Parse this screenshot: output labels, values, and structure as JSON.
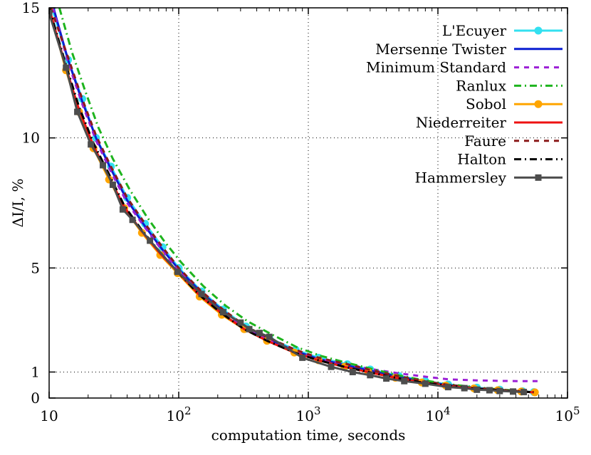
{
  "chart_data": {
    "type": "line",
    "xlabel": "computation time, seconds",
    "ylabel": "ΔI/I, %",
    "xscale": "log",
    "xlim": [
      10,
      100000
    ],
    "ylim": [
      0,
      15
    ],
    "x_ticks": [
      {
        "value": 10,
        "base": "10",
        "exp": ""
      },
      {
        "value": 100,
        "base": "10",
        "exp": "2"
      },
      {
        "value": 1000,
        "base": "10",
        "exp": "3"
      },
      {
        "value": 10000,
        "base": "10",
        "exp": "4"
      },
      {
        "value": 100000,
        "base": "10",
        "exp": "5"
      }
    ],
    "y_ticks": [
      {
        "value": 0,
        "label": "0"
      },
      {
        "value": 1,
        "label": "1"
      },
      {
        "value": 5,
        "label": "5"
      },
      {
        "value": 10,
        "label": "10"
      },
      {
        "value": 15,
        "label": "15"
      }
    ],
    "grid": true,
    "legend_position": "top-right",
    "series": [
      {
        "name": "L'Ecuyer",
        "color": "#33e0f0",
        "dash": "solid",
        "marker": "circle",
        "x": [
          10.5,
          14,
          18,
          23,
          30,
          40,
          55,
          75,
          100,
          150,
          220,
          330,
          500,
          800,
          1200,
          2000,
          3000,
          5000,
          8000,
          12000,
          20000,
          30000,
          45000,
          55000
        ],
        "y": [
          15,
          13.0,
          11.5,
          10.0,
          8.9,
          7.7,
          6.7,
          5.8,
          5.0,
          4.1,
          3.4,
          2.75,
          2.3,
          1.85,
          1.55,
          1.3,
          1.1,
          0.85,
          0.65,
          0.52,
          0.4,
          0.32,
          0.26,
          0.23
        ]
      },
      {
        "name": "Mersenne Twister",
        "color": "#0a1ed2",
        "dash": "solid",
        "marker": "none",
        "x": [
          10.8,
          14,
          18,
          23,
          30,
          40,
          55,
          75,
          100,
          150,
          220,
          330,
          500,
          800,
          1200,
          2000,
          3000,
          5000,
          8000,
          12000,
          20000,
          30000,
          45000,
          55000
        ],
        "y": [
          15,
          13.0,
          11.4,
          10.0,
          8.8,
          7.6,
          6.6,
          5.7,
          4.95,
          4.05,
          3.35,
          2.7,
          2.25,
          1.8,
          1.5,
          1.25,
          1.05,
          0.82,
          0.62,
          0.5,
          0.38,
          0.3,
          0.25,
          0.22
        ]
      },
      {
        "name": "Minimum Standard",
        "color": "#9b1fd6",
        "dash": "7 7",
        "marker": "none",
        "x": [
          10.7,
          14,
          18,
          23,
          30,
          40,
          55,
          75,
          100,
          150,
          220,
          330,
          500,
          800,
          1200,
          2000,
          3000,
          5000,
          8000,
          12000,
          20000,
          30000,
          45000,
          60000
        ],
        "y": [
          15,
          12.9,
          11.3,
          9.9,
          8.7,
          7.5,
          6.55,
          5.65,
          4.9,
          4.0,
          3.3,
          2.7,
          2.25,
          1.8,
          1.5,
          1.3,
          1.12,
          0.95,
          0.82,
          0.72,
          0.68,
          0.66,
          0.65,
          0.65
        ]
      },
      {
        "name": "Ranlux",
        "color": "#1eb41e",
        "dash": "10 5 2 5",
        "marker": "none",
        "x": [
          12,
          15,
          19,
          24,
          31,
          42,
          57,
          78,
          105,
          155,
          230,
          340,
          520,
          820,
          1250,
          2000,
          3100,
          5000,
          8000,
          12000,
          20000,
          30000,
          45000,
          55000
        ],
        "y": [
          15,
          13.3,
          11.8,
          10.4,
          9.2,
          8.0,
          6.95,
          6.0,
          5.2,
          4.3,
          3.55,
          2.95,
          2.45,
          1.95,
          1.62,
          1.35,
          1.12,
          0.87,
          0.67,
          0.53,
          0.41,
          0.33,
          0.26,
          0.23
        ]
      },
      {
        "name": "Sobol",
        "color": "#ffa500",
        "dash": "solid",
        "marker": "circle",
        "x": [
          10,
          13.5,
          17,
          22,
          29,
          38,
          52,
          72,
          98,
          145,
          215,
          320,
          480,
          780,
          1200,
          1900,
          2900,
          4700,
          7500,
          11500,
          19000,
          29000,
          44000,
          56000
        ],
        "y": [
          15,
          12.6,
          11.0,
          9.6,
          8.4,
          7.3,
          6.35,
          5.5,
          4.8,
          3.9,
          3.2,
          2.65,
          2.2,
          1.75,
          1.45,
          1.2,
          1.0,
          0.78,
          0.6,
          0.48,
          0.37,
          0.3,
          0.25,
          0.22
        ]
      },
      {
        "name": "Niederreiter",
        "color": "#ee1111",
        "dash": "solid",
        "marker": "none",
        "x": [
          10,
          13.5,
          17,
          22,
          29,
          38,
          52,
          72,
          98,
          145,
          215,
          320,
          480,
          780,
          1200,
          1900,
          2900,
          4700,
          7500,
          11500,
          19000,
          29000,
          44000,
          55000
        ],
        "y": [
          15,
          12.7,
          11.1,
          9.7,
          8.5,
          7.35,
          6.4,
          5.55,
          4.85,
          3.95,
          3.25,
          2.65,
          2.2,
          1.75,
          1.45,
          1.2,
          1.0,
          0.78,
          0.6,
          0.48,
          0.37,
          0.3,
          0.25,
          0.22
        ]
      },
      {
        "name": "Faure",
        "color": "#8b1a1a",
        "dash": "7 7",
        "marker": "none",
        "x": [
          10.3,
          14,
          18,
          23,
          30,
          40,
          55,
          75,
          100,
          150,
          220,
          330,
          500,
          800,
          1200,
          2000,
          3000,
          5000,
          8000,
          12000,
          20000,
          30000,
          45000,
          55000
        ],
        "y": [
          15,
          13.1,
          11.5,
          10.1,
          8.9,
          7.7,
          6.7,
          5.8,
          5.0,
          4.1,
          3.4,
          2.75,
          2.3,
          1.85,
          1.55,
          1.3,
          1.08,
          0.84,
          0.64,
          0.51,
          0.39,
          0.31,
          0.26,
          0.23
        ]
      },
      {
        "name": "Halton",
        "color": "#000000",
        "dash": "10 5 2 5",
        "marker": "none",
        "x": [
          10,
          13.5,
          17,
          22,
          29,
          38,
          52,
          72,
          98,
          145,
          215,
          320,
          480,
          780,
          1200,
          1900,
          2900,
          4700,
          7500,
          11500,
          19000,
          29000,
          44000,
          55000
        ],
        "y": [
          15,
          12.8,
          11.2,
          9.8,
          8.6,
          7.4,
          6.45,
          5.6,
          4.85,
          3.95,
          3.25,
          2.65,
          2.2,
          1.75,
          1.45,
          1.2,
          1.0,
          0.78,
          0.6,
          0.48,
          0.37,
          0.3,
          0.25,
          0.22
        ]
      },
      {
        "name": "Hammersley",
        "color": "#4d4d4d",
        "dash": "solid",
        "marker": "square",
        "x": [
          10,
          13.5,
          16.5,
          21,
          26,
          31,
          37,
          44,
          60,
          98,
          150,
          220,
          300,
          350,
          420,
          500,
          900,
          1500,
          2200,
          3000,
          4000,
          5500,
          8000,
          12000,
          16000,
          20000,
          25000,
          30000,
          38000,
          46000
        ],
        "y": [
          14.8,
          12.7,
          11.0,
          9.75,
          8.95,
          8.2,
          7.25,
          6.85,
          6.05,
          4.85,
          4.0,
          3.3,
          2.9,
          2.65,
          2.5,
          2.35,
          1.55,
          1.2,
          1.0,
          0.88,
          0.75,
          0.65,
          0.55,
          0.42,
          0.38,
          0.32,
          0.3,
          0.27,
          0.25,
          0.23
        ]
      }
    ]
  }
}
